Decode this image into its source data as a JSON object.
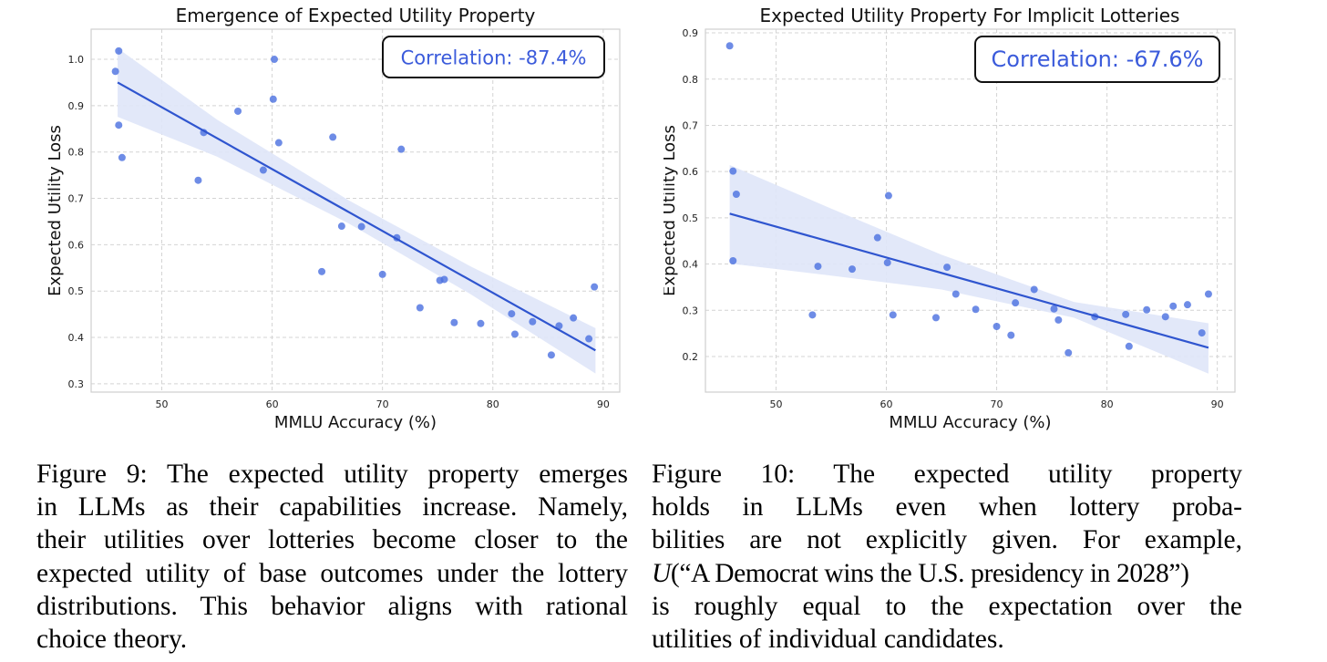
{
  "chart_data": [
    {
      "type": "scatter",
      "title": "Emergence of Expected Utility Property",
      "xlabel": "MMLU Accuracy (%)",
      "ylabel": "Expected Utility Loss",
      "xlim": [
        43.6,
        91.5
      ],
      "ylim": [
        0.282,
        1.065
      ],
      "xticks": [
        50,
        60,
        70,
        80,
        90
      ],
      "yticks": [
        0.3,
        0.4,
        0.5,
        0.6,
        0.7,
        0.8,
        0.9,
        1.0
      ],
      "xtick_labels": [
        "50",
        "60",
        "70",
        "80",
        "90"
      ],
      "ytick_labels": [
        "0.3",
        "0.4",
        "0.5",
        "0.6",
        "0.7",
        "0.8",
        "0.9",
        "1.0"
      ],
      "grid": true,
      "annotation": "Correlation: -87.4%",
      "annotation_placement": "top-right",
      "points": {
        "x": [
          46.1,
          45.8,
          46.1,
          46.4,
          53.3,
          53.8,
          56.9,
          59.2,
          60.2,
          60.1,
          60.6,
          64.5,
          65.5,
          66.3,
          68.1,
          70.0,
          71.3,
          71.7,
          73.4,
          75.2,
          75.6,
          76.5,
          78.9,
          81.7,
          82.0,
          83.6,
          85.3,
          86.0,
          87.3,
          88.7,
          89.2
        ],
        "y": [
          1.018,
          0.974,
          0.858,
          0.788,
          0.739,
          0.842,
          0.888,
          0.761,
          1.0,
          0.914,
          0.82,
          0.542,
          0.832,
          0.64,
          0.639,
          0.536,
          0.615,
          0.806,
          0.464,
          0.523,
          0.525,
          0.432,
          0.43,
          0.451,
          0.407,
          0.434,
          0.362,
          0.425,
          0.442,
          0.397,
          0.509
        ]
      },
      "regression": {
        "x": [
          46.0,
          89.3
        ],
        "y": [
          0.95,
          0.372
        ]
      },
      "confidence_band": {
        "x": [
          46.0,
          55,
          67,
          78,
          89.3
        ],
        "upper": [
          1.024,
          0.87,
          0.695,
          0.553,
          0.42
        ],
        "lower": [
          0.876,
          0.79,
          0.645,
          0.493,
          0.322
        ]
      },
      "colors": {
        "points": "#4a6fe0",
        "line": "#2f55cf",
        "band": "#dfe5f8",
        "text": "#3b5bdb"
      }
    },
    {
      "type": "scatter",
      "title": "Expected Utility Property For Implicit Lotteries",
      "xlabel": "MMLU Accuracy (%)",
      "ylabel": "Expected Utility Loss",
      "xlim": [
        43.6,
        91.6
      ],
      "ylim": [
        0.123,
        0.908
      ],
      "xticks": [
        50,
        60,
        70,
        80,
        90
      ],
      "yticks": [
        0.2,
        0.3,
        0.4,
        0.5,
        0.6,
        0.7,
        0.8,
        0.9
      ],
      "xtick_labels": [
        "50",
        "60",
        "70",
        "80",
        "90"
      ],
      "ytick_labels": [
        "0.2",
        "0.3",
        "0.4",
        "0.5",
        "0.6",
        "0.7",
        "0.8",
        "0.9"
      ],
      "grid": true,
      "annotation": "Correlation: -67.6%",
      "annotation_placement": "top-right",
      "points": {
        "x": [
          45.8,
          46.1,
          46.4,
          46.1,
          53.3,
          53.8,
          56.9,
          59.2,
          60.2,
          60.1,
          60.6,
          64.5,
          65.5,
          66.3,
          68.1,
          70.0,
          71.3,
          71.7,
          73.4,
          75.2,
          75.6,
          76.5,
          78.9,
          81.7,
          82.0,
          83.6,
          85.3,
          86.0,
          87.3,
          88.6,
          89.2
        ],
        "y": [
          0.872,
          0.601,
          0.551,
          0.407,
          0.29,
          0.395,
          0.389,
          0.457,
          0.548,
          0.403,
          0.29,
          0.284,
          0.393,
          0.335,
          0.302,
          0.265,
          0.246,
          0.316,
          0.345,
          0.303,
          0.279,
          0.208,
          0.286,
          0.291,
          0.222,
          0.301,
          0.286,
          0.309,
          0.312,
          0.251,
          0.335
        ]
      },
      "regression": {
        "x": [
          45.8,
          89.2
        ],
        "y": [
          0.509,
          0.219
        ]
      },
      "confidence_band": {
        "x": [
          45.8,
          55,
          65,
          77,
          89.2
        ],
        "upper": [
          0.614,
          0.52,
          0.42,
          0.318,
          0.272
        ],
        "lower": [
          0.401,
          0.375,
          0.345,
          0.284,
          0.163
        ]
      },
      "colors": {
        "points": "#4a6fe0",
        "line": "#2f55cf",
        "band": "#dfe5f8",
        "text": "#3b5bdb"
      }
    }
  ],
  "captions": {
    "figure9": {
      "lines": [
        "Figure 9: The expected utility property emerges",
        "in LLMs as their capabilities increase. Namely,",
        "their utilities over lotteries become closer to the",
        "expected utility of base outcomes under the lottery",
        "distributions. This behavior aligns with rational",
        "choice theory."
      ]
    },
    "figure10": {
      "lines": [
        "Figure 10:  The expected utility property",
        "holds in LLMs even when lottery proba-",
        "bilities are not explicitly given.  For example,",
        "(“A Democrat wins the U.S. presidency in 2028”)",
        "is roughly equal to the expectation over the",
        "utilities of individual candidates."
      ],
      "math_symbol": "U"
    }
  }
}
